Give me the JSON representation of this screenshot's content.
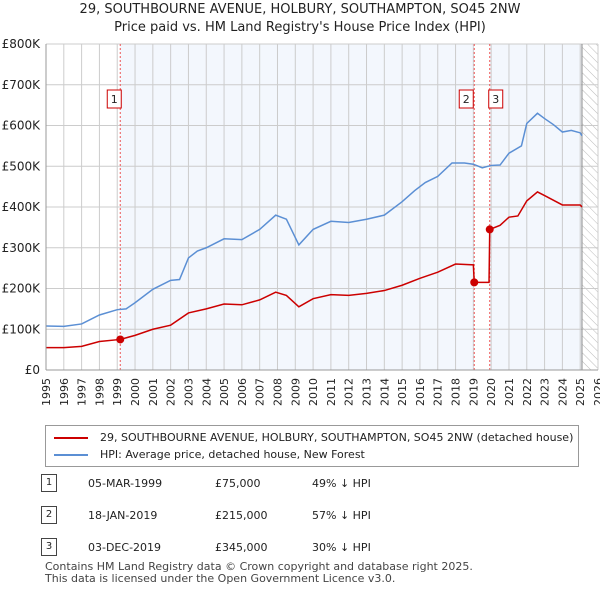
{
  "chart_data": {
    "type": "line",
    "title": "29, SOUTHBOURNE AVENUE, HOLBURY, SOUTHAMPTON, SO45 2NW",
    "subtitle": "Price paid vs. HM Land Registry's House Price Index (HPI)",
    "xlim": [
      1995,
      2026
    ],
    "ylim": [
      0,
      800000
    ],
    "x_ticks": [
      "1995",
      "1996",
      "1997",
      "1998",
      "1999",
      "2000",
      "2001",
      "2002",
      "2003",
      "2004",
      "2005",
      "2006",
      "2007",
      "2008",
      "2009",
      "2010",
      "2011",
      "2012",
      "2013",
      "2014",
      "2015",
      "2016",
      "2017",
      "2018",
      "2019",
      "2020",
      "2021",
      "2022",
      "2023",
      "2024",
      "2025",
      "2026"
    ],
    "y_ticks": [
      {
        "v": 0,
        "label": "£0"
      },
      {
        "v": 100000,
        "label": "£100K"
      },
      {
        "v": 200000,
        "label": "£200K"
      },
      {
        "v": 300000,
        "label": "£300K"
      },
      {
        "v": 400000,
        "label": "£400K"
      },
      {
        "v": 500000,
        "label": "£500K"
      },
      {
        "v": 600000,
        "label": "£600K"
      },
      {
        "v": 700000,
        "label": "£700K"
      },
      {
        "v": 800000,
        "label": "£800K"
      }
    ],
    "grid": true,
    "series": [
      {
        "name": "29, SOUTHBOURNE AVENUE, HOLBURY, SOUTHAMPTON, SO45 2NW (detached house)",
        "color": "#cc0000",
        "points": [
          [
            1995,
            55000
          ],
          [
            1996,
            55000
          ],
          [
            1997,
            58000
          ],
          [
            1998,
            70000
          ],
          [
            1999.17,
            75000
          ],
          [
            2000,
            85000
          ],
          [
            2001,
            100000
          ],
          [
            2002,
            110000
          ],
          [
            2003,
            140000
          ],
          [
            2004,
            150000
          ],
          [
            2005,
            162000
          ],
          [
            2006,
            160000
          ],
          [
            2007,
            172000
          ],
          [
            2007.9,
            191000
          ],
          [
            2008.5,
            183000
          ],
          [
            2009.2,
            155000
          ],
          [
            2010,
            175000
          ],
          [
            2011,
            185000
          ],
          [
            2012,
            183000
          ],
          [
            2013,
            188000
          ],
          [
            2014,
            195000
          ],
          [
            2015,
            208000
          ],
          [
            2016,
            225000
          ],
          [
            2017,
            240000
          ],
          [
            2018,
            260000
          ],
          [
            2019.0,
            258000
          ],
          [
            2019.05,
            215000
          ],
          [
            2019.88,
            215000
          ],
          [
            2019.92,
            345000
          ],
          [
            2020.5,
            355000
          ],
          [
            2021,
            375000
          ],
          [
            2021.5,
            378000
          ],
          [
            2022,
            415000
          ],
          [
            2022.6,
            437000
          ],
          [
            2023,
            428000
          ],
          [
            2024,
            405000
          ],
          [
            2025,
            405000
          ],
          [
            2025.1,
            400000
          ]
        ]
      },
      {
        "name": "HPI: Average price, detached house, New Forest",
        "color": "#5b8fd4",
        "points": [
          [
            1995,
            108000
          ],
          [
            1996,
            107000
          ],
          [
            1997,
            113000
          ],
          [
            1998,
            135000
          ],
          [
            1999,
            148000
          ],
          [
            1999.5,
            150000
          ],
          [
            2000,
            165000
          ],
          [
            2001,
            198000
          ],
          [
            2002,
            220000
          ],
          [
            2002.5,
            222000
          ],
          [
            2003,
            275000
          ],
          [
            2003.5,
            292000
          ],
          [
            2004,
            300000
          ],
          [
            2005,
            322000
          ],
          [
            2006,
            320000
          ],
          [
            2007,
            345000
          ],
          [
            2007.9,
            380000
          ],
          [
            2008.5,
            370000
          ],
          [
            2009.2,
            307000
          ],
          [
            2010,
            345000
          ],
          [
            2011,
            365000
          ],
          [
            2012,
            362000
          ],
          [
            2013,
            370000
          ],
          [
            2014,
            380000
          ],
          [
            2015,
            413000
          ],
          [
            2015.7,
            440000
          ],
          [
            2016.3,
            460000
          ],
          [
            2017,
            475000
          ],
          [
            2017.8,
            508000
          ],
          [
            2018.5,
            508000
          ],
          [
            2019,
            505000
          ],
          [
            2019.5,
            496000
          ],
          [
            2020,
            502000
          ],
          [
            2020.5,
            503000
          ],
          [
            2021,
            532000
          ],
          [
            2021.7,
            550000
          ],
          [
            2022,
            605000
          ],
          [
            2022.6,
            630000
          ],
          [
            2023,
            617000
          ],
          [
            2023.5,
            602000
          ],
          [
            2024,
            584000
          ],
          [
            2024.5,
            588000
          ],
          [
            2025,
            582000
          ],
          [
            2025.1,
            575000
          ]
        ]
      }
    ],
    "sales": [
      {
        "id": "1",
        "x": 1999.17,
        "y": 75000
      },
      {
        "id": "2",
        "x": 2019.05,
        "y": 215000
      },
      {
        "id": "3",
        "x": 2019.92,
        "y": 345000
      }
    ],
    "forecast_from": 2025.1
  },
  "legend": {
    "red": "29, SOUTHBOURNE AVENUE, HOLBURY, SOUTHAMPTON, SO45 2NW (detached house)",
    "blue": "HPI: Average price, detached house, New Forest"
  },
  "sales_table": [
    {
      "id": "1",
      "date": "05-MAR-1999",
      "price": "£75,000",
      "hpi": "49% ↓ HPI"
    },
    {
      "id": "2",
      "date": "18-JAN-2019",
      "price": "£215,000",
      "hpi": "57% ↓ HPI"
    },
    {
      "id": "3",
      "date": "03-DEC-2019",
      "price": "£345,000",
      "hpi": "30% ↓ HPI"
    }
  ],
  "footer": {
    "line1": "Contains HM Land Registry data © Crown copyright and database right 2025.",
    "line2": "This data is licensed under the Open Government Licence v3.0."
  }
}
